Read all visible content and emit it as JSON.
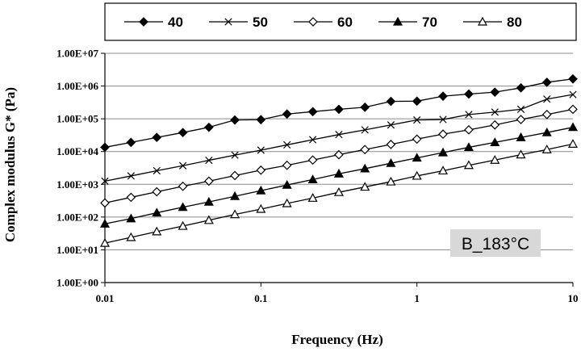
{
  "chart_data": {
    "type": "line",
    "xlabel": "Frequency (Hz)",
    "ylabel": "Complex modulus G* (Pa)",
    "x_scale": "log",
    "y_scale": "log",
    "xlim": [
      0.01,
      10
    ],
    "ylim": [
      1,
      10000000
    ],
    "x_ticks": [
      0.01,
      0.1,
      1,
      10
    ],
    "x_tick_labels": [
      "0.01",
      "0.1",
      "1",
      "10"
    ],
    "y_ticks": [
      1,
      10,
      100,
      1000,
      10000,
      100000,
      1000000,
      10000000
    ],
    "y_tick_labels": [
      "1.00E+00",
      "1.00E+01",
      "1.00E+02",
      "1.00E+03",
      "1.00E+04",
      "1.00E+05",
      "1.00E+06",
      "1.00E+07"
    ],
    "grid": "horizontal",
    "legend_position": "top",
    "annotation": "B_183°C",
    "x": [
      0.01,
      0.0147,
      0.0215,
      0.0316,
      0.0464,
      0.0681,
      0.1,
      0.147,
      0.215,
      0.316,
      0.464,
      0.681,
      1,
      1.47,
      2.15,
      3.16,
      4.64,
      6.81,
      10
    ],
    "series": [
      {
        "name": "40",
        "marker": "diamond-filled",
        "values": [
          13500,
          19000,
          27000,
          38000,
          55000,
          92000,
          94000,
          140000,
          165000,
          195000,
          225000,
          340000,
          345000,
          490000,
          570000,
          650000,
          880000,
          1300000,
          1650000
        ]
      },
      {
        "name": "50",
        "marker": "x",
        "values": [
          1250,
          1800,
          2600,
          3700,
          5400,
          7800,
          11000,
          16000,
          23000,
          33000,
          46000,
          65000,
          92000,
          95000,
          135000,
          160000,
          195000,
          400000,
          550000
        ]
      },
      {
        "name": "60",
        "marker": "diamond-open",
        "values": [
          270,
          400,
          590,
          870,
          1250,
          1850,
          2700,
          3800,
          5500,
          8000,
          11500,
          16500,
          24000,
          34000,
          46000,
          65000,
          95000,
          135000,
          195000
        ]
      },
      {
        "name": "70",
        "marker": "triangle-filled",
        "values": [
          62,
          90,
          135,
          200,
          290,
          430,
          640,
          950,
          1400,
          2100,
          3000,
          4400,
          6400,
          9300,
          13500,
          19000,
          27000,
          38000,
          55000
        ]
      },
      {
        "name": "80",
        "marker": "triangle-open",
        "values": [
          16,
          24,
          36,
          53,
          80,
          120,
          175,
          260,
          380,
          570,
          830,
          1200,
          1800,
          2600,
          3800,
          5500,
          8000,
          11500,
          17000
        ]
      }
    ]
  }
}
